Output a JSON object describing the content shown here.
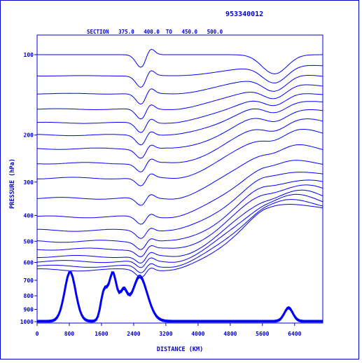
{
  "chart_data": {
    "type": "line",
    "id_label": "953340012",
    "section_label": "SECTION   375.0   400.0  TO   450.0   500.0",
    "xlabel": "DISTANCE (KM)",
    "ylabel": "PRESSURE (hPa)",
    "x_ticks": [
      "0",
      "800",
      "1600",
      "2400",
      "3200",
      "4000",
      "4800",
      "5600",
      "6400"
    ],
    "y_ticks": [
      "100",
      "200",
      "300",
      "400",
      "500",
      "600",
      "700",
      "800",
      "900",
      "1000"
    ],
    "xlim": [
      0,
      7100
    ],
    "ylim": [
      1000,
      100
    ],
    "line_color": "#0000ff",
    "upper_isentrope_levels_hpa": [
      100,
      120,
      140,
      160,
      180,
      200,
      225,
      255,
      290,
      345,
      405,
      455,
      500,
      535,
      570,
      595,
      620,
      640
    ],
    "lower_isentrope_levels_hpa": [
      650,
      660,
      672,
      685,
      697,
      710,
      722,
      735,
      748,
      760,
      772,
      785,
      797,
      810,
      822,
      835,
      848,
      860,
      872,
      885,
      898,
      910,
      922,
      935,
      948,
      960,
      972,
      985
    ]
  }
}
